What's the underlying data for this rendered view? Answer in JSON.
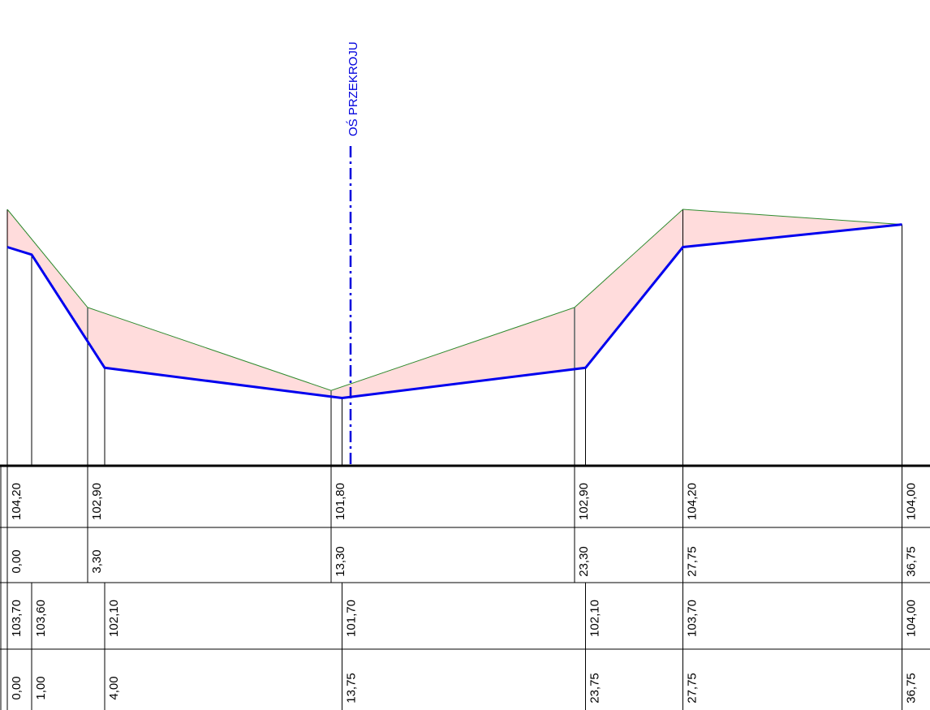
{
  "axis_label": "OŚ PRZEKROJU",
  "colors": {
    "existing_ground": "#2e8b2e",
    "design_line": "#0000ee",
    "hatch": "#ff9a9a",
    "axis": "#0000dd",
    "lines": "#000000"
  },
  "existing_ground": {
    "elevations": [
      "104,20",
      "102,90",
      "101,80",
      "102,90",
      "104,20",
      "104,00"
    ],
    "offsets": [
      "0,00",
      "3,30",
      "13,30",
      "23,30",
      "27,75",
      "36,75"
    ]
  },
  "design": {
    "elevations": [
      "103,70",
      "103,60",
      "102,10",
      "101,70",
      "102,10",
      "103,70",
      "104,00"
    ],
    "offsets": [
      "0,00",
      "1,00",
      "4,00",
      "13,75",
      "23,75",
      "27,75",
      "36,75"
    ]
  }
}
